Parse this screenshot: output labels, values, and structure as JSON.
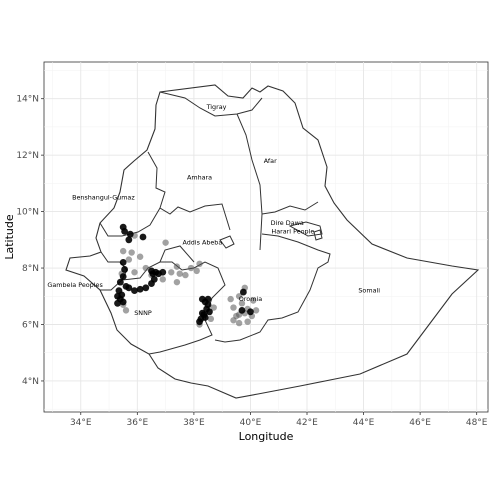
{
  "chart_data": {
    "type": "scatter",
    "xlabel": "Longitude",
    "ylabel": "Latitude",
    "xlim": [
      32.7,
      48.4
    ],
    "ylim": [
      2.9,
      15.3
    ],
    "grid": true,
    "x_ticks": [
      {
        "value": 34,
        "label": "34°E"
      },
      {
        "value": 36,
        "label": "36°E"
      },
      {
        "value": 38,
        "label": "38°E"
      },
      {
        "value": 40,
        "label": "40°E"
      },
      {
        "value": 42,
        "label": "42°E"
      },
      {
        "value": 44,
        "label": "44°E"
      },
      {
        "value": 46,
        "label": "46°E"
      },
      {
        "value": 48,
        "label": "48°E"
      }
    ],
    "y_ticks": [
      {
        "value": 4,
        "label": "4°N"
      },
      {
        "value": 6,
        "label": "6°N"
      },
      {
        "value": 8,
        "label": "8°N"
      },
      {
        "value": 10,
        "label": "10°N"
      },
      {
        "value": 12,
        "label": "12°N"
      },
      {
        "value": 14,
        "label": "14°N"
      }
    ],
    "regions": [
      {
        "name": "Tigray",
        "lon": 38.8,
        "lat": 13.7
      },
      {
        "name": "Afar",
        "lon": 40.7,
        "lat": 11.8
      },
      {
        "name": "Amhara",
        "lon": 38.2,
        "lat": 11.2
      },
      {
        "name": "Benshangul-Gumaz",
        "lon": 34.8,
        "lat": 10.5
      },
      {
        "name": "Addis Abeba",
        "lon": 38.3,
        "lat": 8.9
      },
      {
        "name": "Dire Dawa",
        "lon": 41.3,
        "lat": 9.6
      },
      {
        "name": "Harari People",
        "lon": 41.5,
        "lat": 9.3
      },
      {
        "name": "Gambela Peoples",
        "lon": 33.8,
        "lat": 7.4
      },
      {
        "name": "SNNP",
        "lon": 36.2,
        "lat": 6.4
      },
      {
        "name": "Oromia",
        "lon": 40.0,
        "lat": 6.9
      },
      {
        "name": "Somali",
        "lon": 44.2,
        "lat": 7.2
      }
    ],
    "points_dark": [
      [
        35.5,
        9.45
      ],
      [
        35.55,
        9.3
      ],
      [
        35.75,
        9.2
      ],
      [
        36.2,
        9.1
      ],
      [
        35.7,
        9.0
      ],
      [
        35.5,
        8.2
      ],
      [
        35.55,
        7.95
      ],
      [
        35.5,
        7.7
      ],
      [
        35.4,
        7.5
      ],
      [
        35.6,
        7.35
      ],
      [
        35.35,
        7.2
      ],
      [
        35.3,
        7.0
      ],
      [
        35.4,
        6.9
      ],
      [
        35.5,
        6.8
      ],
      [
        35.3,
        6.75
      ],
      [
        35.45,
        7.05
      ],
      [
        35.7,
        7.3
      ],
      [
        35.9,
        7.2
      ],
      [
        36.1,
        7.25
      ],
      [
        36.3,
        7.3
      ],
      [
        36.5,
        7.45
      ],
      [
        36.55,
        7.8
      ],
      [
        36.65,
        7.85
      ],
      [
        36.75,
        7.8
      ],
      [
        36.5,
        7.9
      ],
      [
        36.9,
        7.85
      ],
      [
        36.6,
        7.6
      ],
      [
        38.3,
        6.9
      ],
      [
        38.4,
        6.8
      ],
      [
        38.5,
        6.7
      ],
      [
        38.45,
        6.55
      ],
      [
        38.55,
        6.45
      ],
      [
        38.35,
        6.35
      ],
      [
        38.4,
        6.25
      ],
      [
        38.25,
        6.2
      ],
      [
        38.2,
        6.1
      ],
      [
        38.3,
        6.4
      ],
      [
        38.5,
        6.9
      ],
      [
        39.75,
        7.15
      ],
      [
        39.7,
        6.5
      ],
      [
        40.0,
        6.45
      ]
    ],
    "points_grey": [
      [
        35.9,
        9.15
      ],
      [
        37.0,
        8.9
      ],
      [
        35.5,
        8.6
      ],
      [
        35.8,
        8.55
      ],
      [
        36.1,
        8.4
      ],
      [
        35.7,
        8.3
      ],
      [
        36.3,
        8.0
      ],
      [
        36.5,
        7.75
      ],
      [
        36.9,
        7.6
      ],
      [
        37.2,
        7.85
      ],
      [
        37.5,
        7.8
      ],
      [
        37.9,
        8.0
      ],
      [
        38.2,
        8.15
      ],
      [
        37.4,
        8.05
      ],
      [
        38.1,
        7.9
      ],
      [
        37.7,
        7.75
      ],
      [
        35.45,
        7.8
      ],
      [
        35.9,
        7.85
      ],
      [
        35.6,
        6.5
      ],
      [
        35.5,
        6.7
      ],
      [
        37.4,
        7.5
      ],
      [
        38.6,
        6.2
      ],
      [
        38.2,
        6.0
      ],
      [
        38.7,
        6.6
      ],
      [
        39.5,
        6.3
      ],
      [
        39.4,
        6.15
      ],
      [
        39.6,
        6.35
      ],
      [
        39.8,
        6.4
      ],
      [
        39.9,
        6.55
      ],
      [
        40.2,
        6.5
      ],
      [
        40.1,
        6.85
      ],
      [
        39.6,
        7.0
      ],
      [
        39.4,
        6.6
      ],
      [
        39.7,
        6.75
      ],
      [
        39.6,
        6.05
      ],
      [
        39.9,
        6.1
      ],
      [
        40.05,
        6.3
      ],
      [
        39.3,
        6.9
      ],
      [
        39.8,
        7.3
      ]
    ]
  }
}
